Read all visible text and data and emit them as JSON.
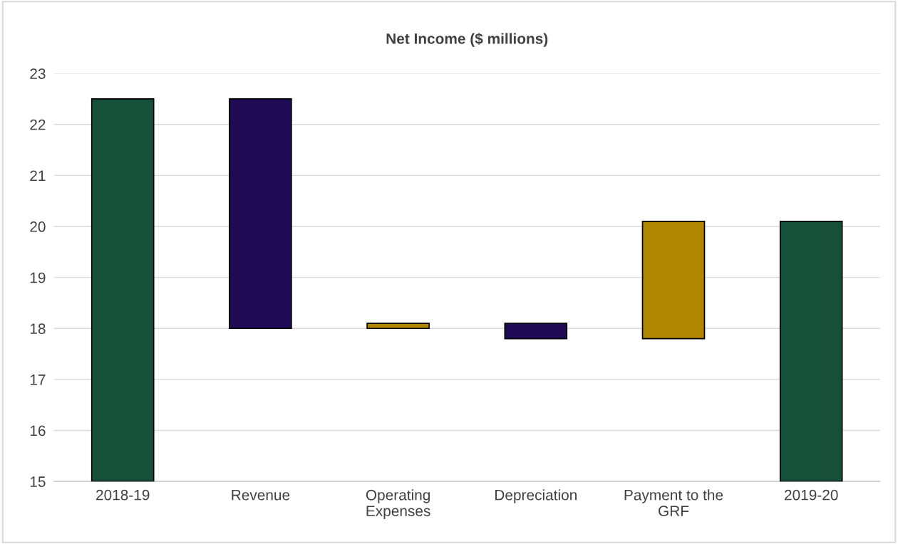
{
  "chart_data": {
    "type": "bar",
    "title": "Net Income ($ millions)",
    "categories": [
      "2018-19",
      "Revenue",
      "Operating\nExpenses",
      "Depreciation",
      "Payment to the\nGRF",
      "2019-20"
    ],
    "base": [
      15,
      18,
      18,
      17.8,
      17.8,
      15
    ],
    "values": [
      7.5,
      4.5,
      0.1,
      0.3,
      2.3,
      5.1
    ],
    "colors": [
      "#17503a",
      "#1e0a55",
      "#b08500",
      "#1e0a55",
      "#b08500",
      "#17503a"
    ],
    "ylim": [
      15,
      23
    ],
    "yticks": [
      15,
      16,
      17,
      18,
      19,
      20,
      21,
      22,
      23
    ],
    "grid": "y",
    "legend": false
  }
}
